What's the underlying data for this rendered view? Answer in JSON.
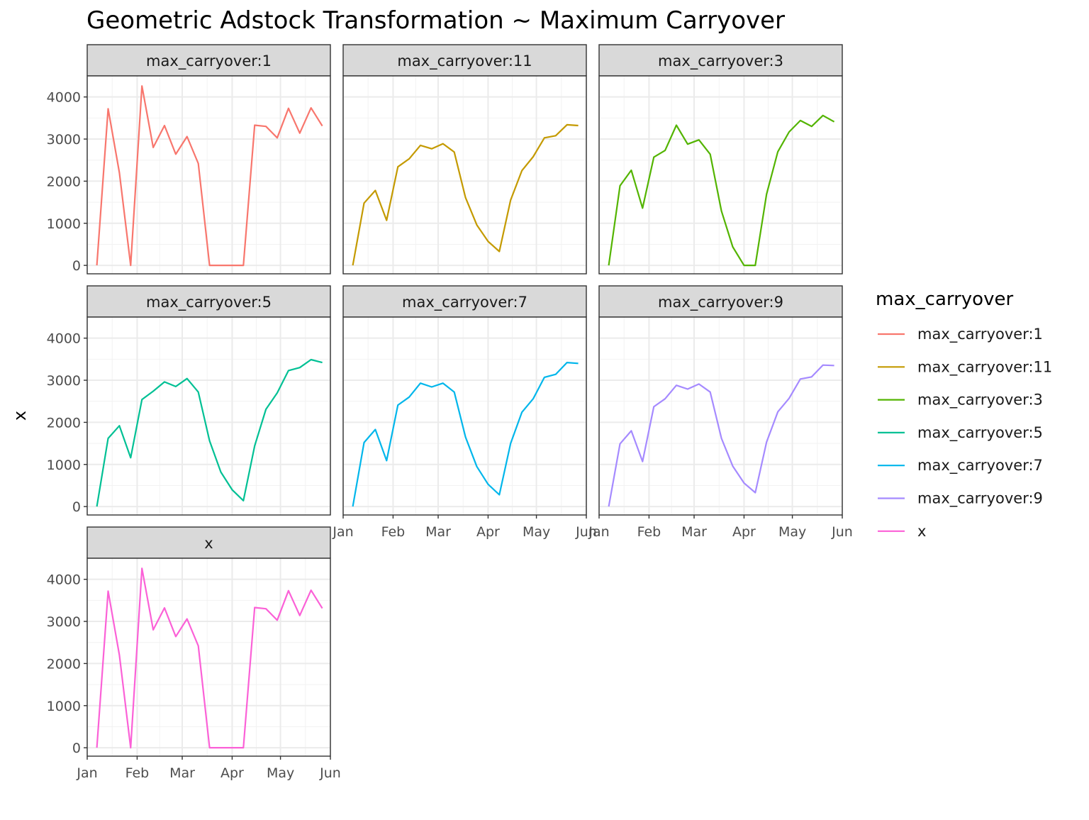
{
  "chart_data": {
    "type": "line",
    "title": "Geometric Adstock Transformation ~ Maximum Carryover",
    "ylabel": "x",
    "xlabel": "",
    "facet_by": "max_carryover",
    "legend": {
      "title": "max_carryover",
      "position": "right"
    },
    "x_ticks": [
      "Jan",
      "Feb",
      "Mar",
      "Apr",
      "May",
      "Jun"
    ],
    "x_tick_dates": [
      "2018-01-01",
      "2018-02-01",
      "2018-03-01",
      "2018-04-01",
      "2018-05-01",
      "2018-06-01"
    ],
    "xlim": [
      "2018-01-01",
      "2018-06-01"
    ],
    "y_ticks": [
      0,
      1000,
      2000,
      3000,
      4000
    ],
    "ylim": [
      -200,
      4500
    ],
    "grid": true,
    "dates": [
      "2018-01-07",
      "2018-01-14",
      "2018-01-21",
      "2018-01-28",
      "2018-02-04",
      "2018-02-11",
      "2018-02-18",
      "2018-02-25",
      "2018-03-04",
      "2018-03-11",
      "2018-03-18",
      "2018-03-25",
      "2018-04-01",
      "2018-04-08",
      "2018-04-15",
      "2018-04-22",
      "2018-04-29",
      "2018-05-06",
      "2018-05-13",
      "2018-05-20",
      "2018-05-27"
    ],
    "series": [
      {
        "name": "max_carryover:1",
        "color": "#F8766D",
        "values": [
          0,
          3720,
          2200,
          0,
          4260,
          2800,
          3320,
          2640,
          3060,
          2420,
          0,
          0,
          0,
          0,
          3330,
          3300,
          3030,
          3730,
          3140,
          3740,
          3310
        ]
      },
      {
        "name": "max_carryover:11",
        "color": "#C49A00",
        "values": [
          0,
          1480,
          1780,
          1070,
          2340,
          2530,
          2850,
          2770,
          2890,
          2690,
          1610,
          960,
          570,
          330,
          1550,
          2250,
          2580,
          3030,
          3080,
          3340,
          3320
        ]
      },
      {
        "name": "max_carryover:3",
        "color": "#53B400",
        "values": [
          0,
          1890,
          2260,
          1360,
          2570,
          2730,
          3330,
          2880,
          2980,
          2640,
          1290,
          440,
          0,
          0,
          1690,
          2700,
          3170,
          3440,
          3300,
          3560,
          3410
        ]
      },
      {
        "name": "max_carryover:5",
        "color": "#00C094",
        "values": [
          0,
          1620,
          1920,
          1160,
          2540,
          2740,
          2960,
          2850,
          3040,
          2720,
          1560,
          820,
          400,
          140,
          1440,
          2310,
          2700,
          3230,
          3300,
          3490,
          3420
        ]
      },
      {
        "name": "max_carryover:7",
        "color": "#00B6EB",
        "values": [
          0,
          1520,
          1830,
          1090,
          2410,
          2600,
          2930,
          2840,
          2930,
          2720,
          1650,
          950,
          530,
          280,
          1500,
          2240,
          2560,
          3070,
          3140,
          3420,
          3400
        ]
      },
      {
        "name": "max_carryover:9",
        "color": "#A58AFF",
        "values": [
          0,
          1490,
          1800,
          1070,
          2370,
          2560,
          2880,
          2790,
          2910,
          2720,
          1620,
          960,
          560,
          330,
          1530,
          2250,
          2570,
          3030,
          3080,
          3360,
          3350
        ]
      },
      {
        "name": "x",
        "color": "#FB61D7",
        "values": [
          0,
          3720,
          2200,
          0,
          4260,
          2800,
          3320,
          2640,
          3060,
          2420,
          0,
          0,
          0,
          0,
          3330,
          3300,
          3030,
          3730,
          3140,
          3740,
          3310
        ]
      }
    ]
  }
}
